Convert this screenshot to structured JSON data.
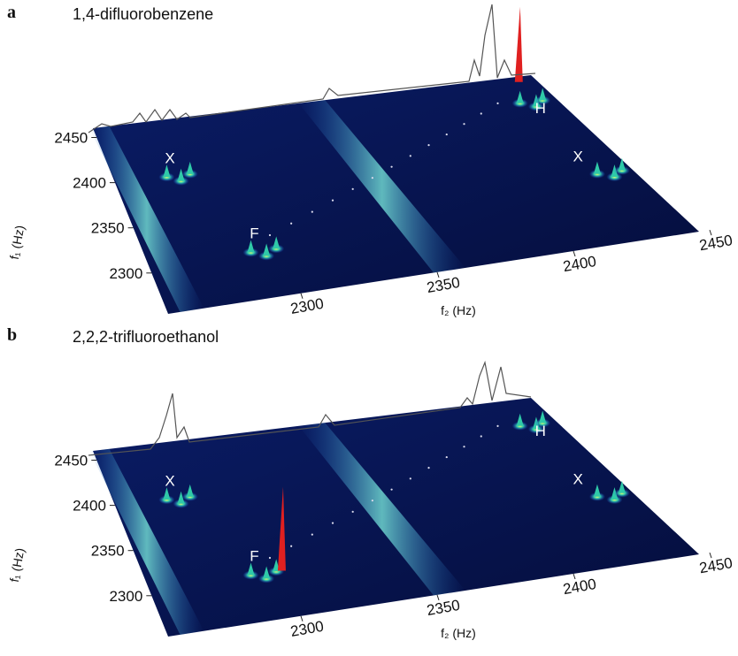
{
  "panels": [
    {
      "label": "a",
      "title": "1,4-difluorobenzene",
      "f1_ticks": [
        2450,
        2400,
        2350,
        2300
      ],
      "f2_ticks": [
        2300,
        2350,
        2400,
        2450
      ],
      "f1_label": "f₁ (Hz)",
      "f2_label": "f₂ (Hz)",
      "peak_labels": [
        "X",
        "F",
        "H",
        "X"
      ]
    },
    {
      "label": "b",
      "title": "2,2,2-trifluoroethanol",
      "f1_ticks": [
        2450,
        2400,
        2350,
        2300
      ],
      "f2_ticks": [
        2300,
        2350,
        2400,
        2450
      ],
      "f1_label": "f₁ (Hz)",
      "f2_label": "f₂ (Hz)",
      "peak_labels": [
        "X",
        "F",
        "H",
        "X"
      ]
    }
  ]
}
